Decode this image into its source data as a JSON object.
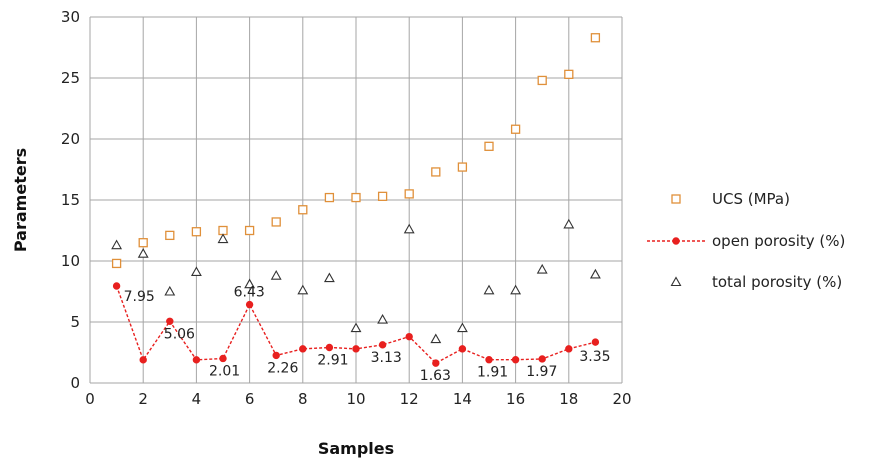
{
  "chart_data": {
    "type": "scatter",
    "title": "",
    "xlabel": "Samples",
    "ylabel": "Parameters",
    "xlim": [
      0,
      20
    ],
    "ylim": [
      0,
      30
    ],
    "xticks": [
      0,
      2,
      4,
      6,
      8,
      10,
      12,
      14,
      16,
      18,
      20
    ],
    "yticks": [
      0,
      5,
      10,
      15,
      20,
      25,
      30
    ],
    "grid": true,
    "legend_position": "right",
    "series": [
      {
        "name": "UCS (MPa)",
        "marker": "square-open",
        "color": "#e0903a",
        "x": [
          1,
          2,
          3,
          4,
          5,
          6,
          7,
          8,
          9,
          10,
          11,
          12,
          13,
          14,
          15,
          16,
          17,
          18,
          19
        ],
        "y": [
          9.8,
          11.5,
          12.1,
          12.4,
          12.5,
          12.5,
          13.2,
          14.2,
          15.2,
          15.2,
          15.3,
          15.5,
          17.3,
          17.7,
          19.4,
          20.8,
          24.8,
          25.3,
          28.3
        ]
      },
      {
        "name": "open porosity (%)",
        "marker": "dot-dashed-line",
        "color": "#e8201f",
        "x": [
          1,
          2,
          3,
          4,
          5,
          6,
          7,
          8,
          9,
          10,
          11,
          12,
          13,
          14,
          15,
          16,
          17,
          18,
          19
        ],
        "y": [
          7.95,
          1.9,
          5.06,
          1.9,
          2.01,
          6.43,
          2.26,
          2.8,
          2.91,
          2.8,
          3.13,
          3.8,
          1.63,
          2.8,
          1.91,
          1.91,
          1.97,
          2.8,
          3.35
        ]
      },
      {
        "name": "total porosity (%)",
        "marker": "triangle-open",
        "color": "#333333",
        "x": [
          1,
          2,
          3,
          4,
          5,
          6,
          7,
          8,
          9,
          10,
          11,
          12,
          13,
          14,
          15,
          16,
          17,
          18,
          19
        ],
        "y": [
          11.3,
          10.6,
          7.5,
          9.1,
          11.8,
          8.1,
          8.8,
          7.6,
          8.6,
          4.5,
          5.2,
          12.6,
          3.6,
          4.5,
          7.6,
          7.6,
          9.3,
          13.0,
          8.9
        ]
      }
    ],
    "data_labels": [
      {
        "x": 1,
        "y": 7.95,
        "text": "7.95"
      },
      {
        "x": 3,
        "y": 5.06,
        "text": "5.06"
      },
      {
        "x": 5,
        "y": 2.01,
        "text": "2.01"
      },
      {
        "x": 6,
        "y": 6.43,
        "text": "6.43"
      },
      {
        "x": 7,
        "y": 2.26,
        "text": "2.26"
      },
      {
        "x": 9,
        "y": 2.91,
        "text": "2.91"
      },
      {
        "x": 11,
        "y": 3.13,
        "text": "3.13"
      },
      {
        "x": 13,
        "y": 1.63,
        "text": "1.63"
      },
      {
        "x": 15,
        "y": 1.91,
        "text": "1.91"
      },
      {
        "x": 17,
        "y": 1.97,
        "text": "1.97"
      },
      {
        "x": 19,
        "y": 3.35,
        "text": "3.35"
      }
    ]
  }
}
